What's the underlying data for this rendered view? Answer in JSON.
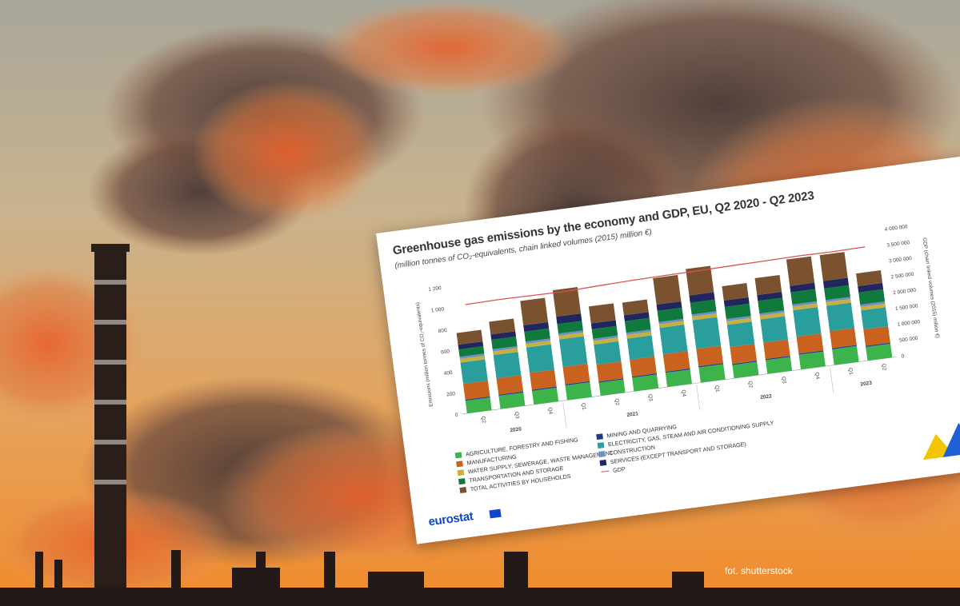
{
  "photo_credit": "fot. shutterstock",
  "brand": "eurostat",
  "chart_data": {
    "type": "bar",
    "stacked": true,
    "title": "Greenhouse gas emissions by the economy and GDP, EU, Q2 2020 - Q2 2023",
    "subtitle": "(million tonnes of CO₂-equivalents, chain linked volumes (2015) million €)",
    "ylabel": "Emissions (million tonnes of CO₂-equivalents)",
    "y2label": "GDP (chain linked volumes (2015) million €)",
    "ylim": [
      0,
      1200
    ],
    "y_ticks": [
      "0",
      "200",
      "400",
      "600",
      "800",
      "1 000",
      "1 200"
    ],
    "y2lim": [
      0,
      4000000
    ],
    "y2_ticks": [
      "0",
      "500 000",
      "1 000 000",
      "1 500 000",
      "2 000 000",
      "2 500 000",
      "3 000 000",
      "3 500 000",
      "4 000 000"
    ],
    "categories": [
      "Q2",
      "Q3",
      "Q4",
      "Q1",
      "Q2",
      "Q3",
      "Q4",
      "Q1",
      "Q2",
      "Q3",
      "Q4",
      "Q1",
      "Q2"
    ],
    "year_groups": [
      {
        "label": "2020",
        "span": 3
      },
      {
        "label": "2021",
        "span": 4
      },
      {
        "label": "2022",
        "span": 4
      },
      {
        "label": "2023",
        "span": 2
      }
    ],
    "series": [
      {
        "name": "AGRICULTURE, FORESTRY AND FISHING",
        "color": "#3cb44b",
        "values": [
          120,
          125,
          130,
          140,
          125,
          130,
          135,
          145,
          125,
          130,
          140,
          150,
          130
        ]
      },
      {
        "name": "MINING AND QUARRYING",
        "color": "#1f3a93",
        "values": [
          10,
          10,
          10,
          10,
          10,
          10,
          10,
          10,
          10,
          10,
          10,
          10,
          10
        ]
      },
      {
        "name": "MANUFACTURING",
        "color": "#c9621e",
        "values": [
          150,
          155,
          160,
          165,
          160,
          160,
          165,
          165,
          160,
          155,
          160,
          160,
          155
        ]
      },
      {
        "name": "ELECTRICITY, GAS, STEAM AND AIR CONDITIONING SUPPLY",
        "color": "#2a9d9d",
        "values": [
          200,
          220,
          240,
          260,
          190,
          200,
          250,
          270,
          210,
          220,
          250,
          240,
          180
        ]
      },
      {
        "name": "WATER SUPPLY; SEWERAGE, WASTE MANAGEMENT",
        "color": "#c8b040",
        "values": [
          35,
          35,
          35,
          35,
          35,
          35,
          35,
          35,
          35,
          35,
          35,
          35,
          35
        ]
      },
      {
        "name": "CONSTRUCTION",
        "color": "#6f8fc8",
        "values": [
          20,
          20,
          20,
          20,
          20,
          20,
          20,
          20,
          20,
          20,
          20,
          20,
          20
        ]
      },
      {
        "name": "TRANSPORTATION AND STORAGE",
        "color": "#0f7a3c",
        "values": [
          70,
          90,
          95,
          90,
          90,
          110,
          105,
          110,
          115,
          120,
          115,
          110,
          115
        ]
      },
      {
        "name": "SERVICES (EXCEPT TRANSPORT AND STORAGE)",
        "color": "#20265e",
        "values": [
          45,
          50,
          60,
          70,
          55,
          55,
          60,
          70,
          60,
          55,
          60,
          70,
          60
        ]
      },
      {
        "name": "TOTAL ACTIVITIES BY HOUSEHOLDS",
        "color": "#7a5230",
        "values": [
          110,
          120,
          230,
          250,
          160,
          120,
          250,
          250,
          135,
          160,
          250,
          245,
          120
        ]
      }
    ],
    "line": {
      "name": "GDP",
      "color": "#d9534f",
      "values": [
        3380000,
        3400000,
        3390000,
        3380000,
        3420000,
        3450000,
        3470000,
        3480000,
        3500000,
        3510000,
        3530000,
        3520000,
        3540000
      ]
    },
    "legend_position": "bottom"
  }
}
